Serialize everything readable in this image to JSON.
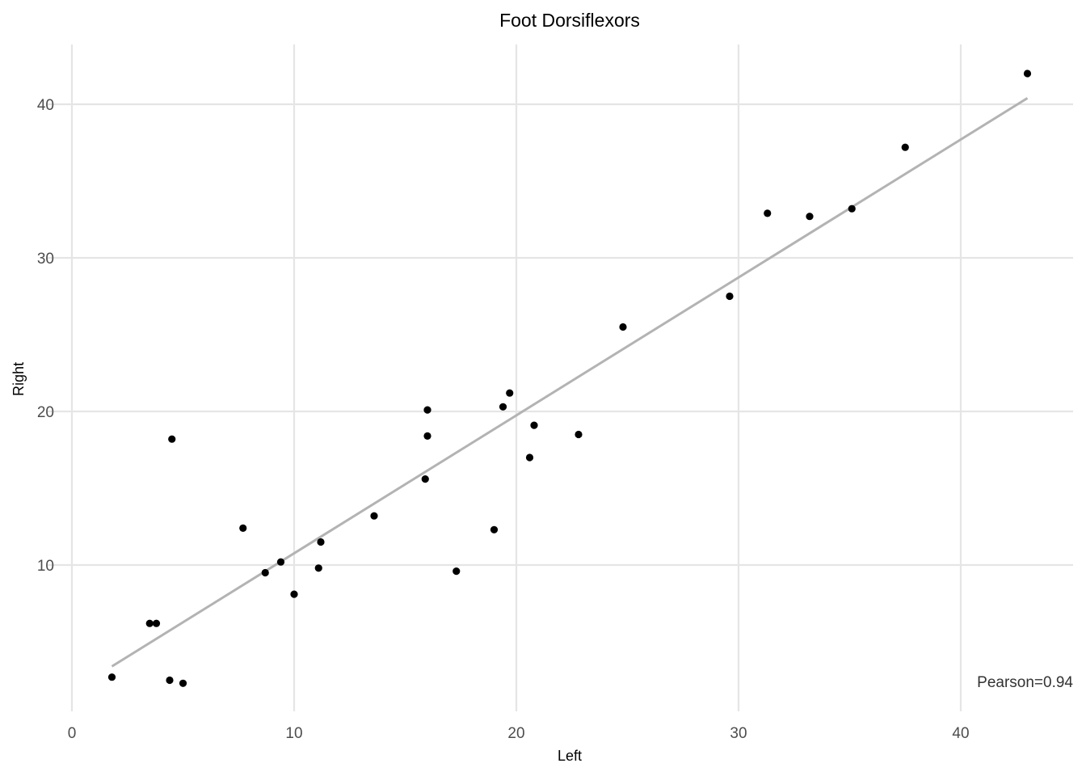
{
  "chart_data": {
    "type": "scatter",
    "title": "Foot Dorsiflexors",
    "xlabel": "Left",
    "ylabel": "Right",
    "xlim": [
      0,
      45
    ],
    "ylim": [
      1,
      44
    ],
    "x_ticks": [
      0,
      10,
      20,
      30,
      40
    ],
    "y_ticks": [
      10,
      20,
      30,
      40
    ],
    "x_tick_labels": [
      "0",
      "10",
      "20",
      "30",
      "40"
    ],
    "y_tick_labels": [
      "10",
      "20",
      "30",
      "40"
    ],
    "grid": true,
    "points": [
      {
        "x": 1.8,
        "y": 2.7
      },
      {
        "x": 3.5,
        "y": 6.2
      },
      {
        "x": 3.8,
        "y": 6.2
      },
      {
        "x": 4.4,
        "y": 2.5
      },
      {
        "x": 4.5,
        "y": 18.2
      },
      {
        "x": 5.0,
        "y": 2.3
      },
      {
        "x": 7.7,
        "y": 12.4
      },
      {
        "x": 8.7,
        "y": 9.5
      },
      {
        "x": 9.4,
        "y": 10.2
      },
      {
        "x": 10.0,
        "y": 8.1
      },
      {
        "x": 11.1,
        "y": 9.8
      },
      {
        "x": 11.2,
        "y": 11.5
      },
      {
        "x": 13.6,
        "y": 13.2
      },
      {
        "x": 15.9,
        "y": 15.6
      },
      {
        "x": 16.0,
        "y": 18.4
      },
      {
        "x": 16.0,
        "y": 20.1
      },
      {
        "x": 17.3,
        "y": 9.6
      },
      {
        "x": 19.0,
        "y": 12.3
      },
      {
        "x": 19.4,
        "y": 20.3
      },
      {
        "x": 19.7,
        "y": 21.2
      },
      {
        "x": 20.6,
        "y": 17.0
      },
      {
        "x": 20.8,
        "y": 19.1
      },
      {
        "x": 22.8,
        "y": 18.5
      },
      {
        "x": 24.8,
        "y": 25.5
      },
      {
        "x": 29.6,
        "y": 27.5
      },
      {
        "x": 31.3,
        "y": 32.9
      },
      {
        "x": 33.2,
        "y": 32.7
      },
      {
        "x": 35.1,
        "y": 33.2
      },
      {
        "x": 37.5,
        "y": 37.2
      },
      {
        "x": 43.0,
        "y": 42.0
      }
    ],
    "trend_line": {
      "x": [
        1.8,
        43.0
      ],
      "y": [
        3.4,
        40.4
      ],
      "color": "#b3b3b3"
    },
    "annotation": "Pearson=0.94",
    "point_color": "#000000",
    "grid_color": "#e5e5e5"
  }
}
